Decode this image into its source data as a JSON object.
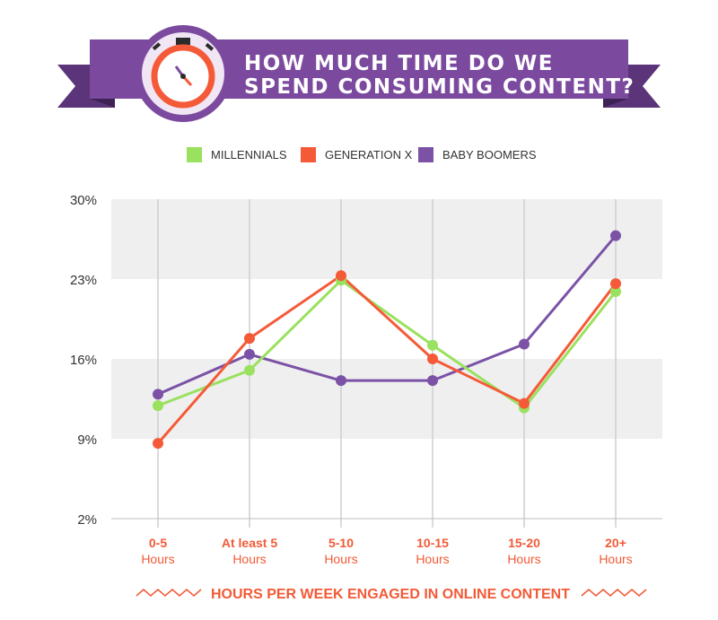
{
  "header": {
    "title_line1": "HOW MUCH TIME DO WE",
    "title_line2": "SPEND CONSUMING CONTENT?",
    "icon": "stopwatch-icon"
  },
  "colors": {
    "banner": "#7b4a9f",
    "banner_dark": "#5c3479",
    "millennials": "#99e15f",
    "generation_x": "#f55a38",
    "baby_boomers": "#7b52a6",
    "grid_band": "#efefef",
    "axis_text": "#f25a36"
  },
  "chart_data": {
    "type": "line",
    "categories": [
      "0-5",
      "At least 5",
      "5-10",
      "10-15",
      "15-20",
      "20+"
    ],
    "category_sub": [
      "Hours",
      "Hours",
      "Hours",
      "Hours",
      "Hours",
      "Hours"
    ],
    "xlabel": "HOURS PER WEEK ENGAGED IN ONLINE CONTENT",
    "ylabel": "",
    "yticks": [
      "2%",
      "9%",
      "16%",
      "23%",
      "30%"
    ],
    "ylim": [
      2,
      30
    ],
    "legend_position": "top-center",
    "grid": true,
    "series": [
      {
        "name": "MILLENNIALS",
        "color_key": "millennials",
        "values": [
          11.9,
          15.0,
          22.9,
          17.2,
          11.7,
          21.9
        ]
      },
      {
        "name": "GENERATION X",
        "color_key": "generation_x",
        "values": [
          8.6,
          17.8,
          23.3,
          16.0,
          12.1,
          22.6
        ]
      },
      {
        "name": "BABY BOOMERS",
        "color_key": "baby_boomers",
        "values": [
          12.9,
          16.4,
          14.1,
          14.1,
          17.3,
          26.8
        ]
      }
    ]
  }
}
